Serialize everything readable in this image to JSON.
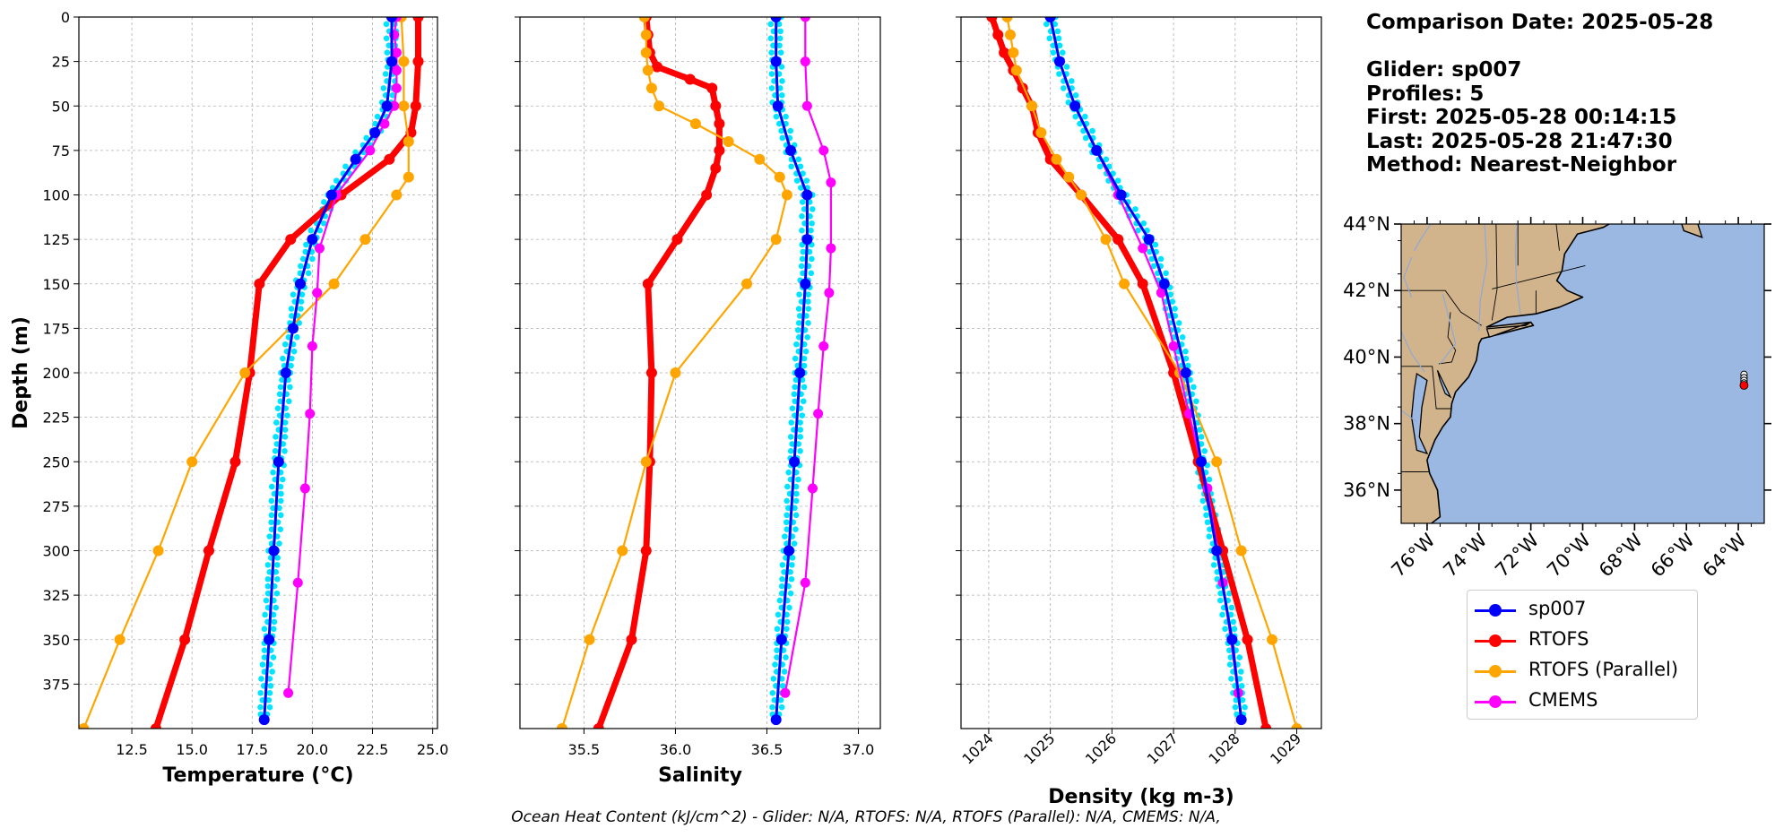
{
  "info": {
    "comparison_date": "Comparison Date: 2025-05-28",
    "glider": "Glider: sp007",
    "profiles": "Profiles: 5",
    "first": "First: 2025-05-28 00:14:15",
    "last": "Last: 2025-05-28 21:47:30",
    "method": "Method: Nearest-Neighbor"
  },
  "footer": "Ocean Heat Content (kJ/cm^2) - Glider: N/A,  RTOFS: N/A,  RTOFS (Parallel): N/A,  CMEMS: N/A,",
  "colors": {
    "glider": "#0000ff",
    "glider_scatter": "#00e5ff",
    "rtofs": "#ff0000",
    "rtofs_parallel": "#ffa500",
    "cmems": "#ff00ff",
    "land": "#d2b48c",
    "ocean": "#9bb8e3",
    "grid": "#b0b0b0"
  },
  "legend": [
    {
      "name": "sp007",
      "color": "#0000ff"
    },
    {
      "name": "RTOFS",
      "color": "#ff0000"
    },
    {
      "name": "RTOFS (Parallel)",
      "color": "#ffa500"
    },
    {
      "name": "CMEMS",
      "color": "#ff00ff"
    }
  ],
  "chart_data": [
    {
      "type": "line",
      "xlabel": "Temperature (°C)",
      "ylabel": "Depth (m)",
      "xlim": [
        10.3,
        25.2
      ],
      "ylim": [
        400,
        0
      ],
      "xticks": [
        "12.5",
        "15.0",
        "17.5",
        "20.0",
        "22.5",
        "25.0"
      ],
      "xtick_values": [
        12.5,
        15.0,
        17.5,
        20.0,
        22.5,
        25.0
      ],
      "yticks": [
        "0",
        "25",
        "50",
        "75",
        "100",
        "125",
        "150",
        "175",
        "200",
        "225",
        "250",
        "275",
        "300",
        "325",
        "350",
        "375"
      ],
      "ytick_values": [
        0,
        25,
        50,
        75,
        100,
        125,
        150,
        175,
        200,
        225,
        250,
        275,
        300,
        325,
        350,
        375
      ],
      "grid": true,
      "series": [
        {
          "name": "RTOFS",
          "depth": [
            0,
            25,
            50,
            65,
            80,
            100,
            125,
            150,
            200,
            250,
            300,
            350,
            400
          ],
          "values": [
            24.4,
            24.4,
            24.3,
            24.1,
            23.2,
            21.2,
            19.1,
            17.8,
            17.4,
            16.8,
            15.7,
            14.7,
            13.5
          ]
        },
        {
          "name": "RTOFS (Parallel)",
          "depth": [
            0,
            25,
            50,
            70,
            90,
            100,
            125,
            150,
            200,
            250,
            300,
            350,
            400
          ],
          "values": [
            23.7,
            23.8,
            23.8,
            24.0,
            24.0,
            23.5,
            22.2,
            20.9,
            17.2,
            15.0,
            13.6,
            12.0,
            10.5
          ]
        },
        {
          "name": "CMEMS",
          "depth": [
            0,
            10,
            20,
            30,
            40,
            50,
            60,
            75,
            100,
            130,
            155,
            185,
            223,
            265,
            318,
            380
          ],
          "values": [
            23.5,
            23.4,
            23.5,
            23.5,
            23.5,
            23.4,
            23.0,
            22.4,
            21.0,
            20.3,
            20.2,
            20.0,
            19.9,
            19.7,
            19.4,
            19.0
          ]
        },
        {
          "name": "sp007",
          "depth": [
            0,
            25,
            50,
            65,
            80,
            100,
            125,
            150,
            175,
            200,
            250,
            300,
            350,
            395
          ],
          "values": [
            23.3,
            23.3,
            23.1,
            22.6,
            21.8,
            20.8,
            20.0,
            19.5,
            19.2,
            18.9,
            18.6,
            18.4,
            18.2,
            18.0
          ]
        }
      ]
    },
    {
      "type": "line",
      "xlabel": "Salinity",
      "ylabel": "Depth (m)",
      "xlim": [
        35.15,
        37.12
      ],
      "ylim": [
        400,
        0
      ],
      "xticks": [
        "35.5",
        "36.0",
        "36.5",
        "37.0"
      ],
      "xtick_values": [
        35.5,
        36.0,
        36.5,
        37.0
      ],
      "grid": true,
      "series": [
        {
          "name": "RTOFS",
          "depth": [
            0,
            10,
            20,
            28,
            35,
            40,
            50,
            60,
            75,
            85,
            100,
            125,
            150,
            200,
            250,
            300,
            350,
            400
          ],
          "values": [
            35.84,
            35.85,
            35.86,
            35.9,
            36.08,
            36.2,
            36.22,
            36.24,
            36.24,
            36.22,
            36.17,
            36.01,
            35.85,
            35.87,
            35.86,
            35.84,
            35.76,
            35.58
          ]
        },
        {
          "name": "RTOFS (Parallel)",
          "depth": [
            0,
            10,
            20,
            30,
            40,
            50,
            60,
            70,
            80,
            90,
            100,
            125,
            150,
            200,
            250,
            300,
            350,
            400
          ],
          "values": [
            35.83,
            35.84,
            35.84,
            35.85,
            35.87,
            35.91,
            36.11,
            36.29,
            36.46,
            36.57,
            36.61,
            36.55,
            36.39,
            36.0,
            35.84,
            35.71,
            35.53,
            35.38
          ]
        },
        {
          "name": "CMEMS",
          "depth": [
            0,
            25,
            50,
            75,
            93,
            130,
            155,
            185,
            223,
            265,
            318,
            380
          ],
          "values": [
            36.71,
            36.71,
            36.72,
            36.81,
            36.85,
            36.85,
            36.84,
            36.81,
            36.78,
            36.75,
            36.71,
            36.6
          ]
        },
        {
          "name": "sp007",
          "depth": [
            0,
            25,
            50,
            75,
            100,
            125,
            150,
            200,
            250,
            300,
            350,
            395
          ],
          "values": [
            36.55,
            36.55,
            36.56,
            36.63,
            36.72,
            36.72,
            36.71,
            36.68,
            36.65,
            36.62,
            36.58,
            36.55
          ]
        }
      ]
    },
    {
      "type": "line",
      "xlabel": "Density (kg m-3)",
      "ylabel": "Depth (m)",
      "xlim": [
        1023.55,
        1029.4
      ],
      "ylim": [
        400,
        0
      ],
      "xticks": [
        "1024",
        "1025",
        "1026",
        "1027",
        "1028",
        "1029"
      ],
      "xtick_values": [
        1024,
        1025,
        1026,
        1027,
        1028,
        1029
      ],
      "grid": true,
      "series": [
        {
          "name": "RTOFS",
          "depth": [
            0,
            10,
            20,
            30,
            40,
            50,
            65,
            80,
            100,
            125,
            150,
            200,
            250,
            300,
            350,
            400
          ],
          "values": [
            1024.05,
            1024.15,
            1024.25,
            1024.4,
            1024.55,
            1024.7,
            1024.8,
            1025.0,
            1025.5,
            1026.1,
            1026.5,
            1027.0,
            1027.4,
            1027.8,
            1028.2,
            1028.5
          ]
        },
        {
          "name": "RTOFS (Parallel)",
          "depth": [
            0,
            10,
            20,
            30,
            50,
            65,
            80,
            90,
            100,
            125,
            150,
            200,
            250,
            300,
            350,
            400
          ],
          "values": [
            1024.3,
            1024.35,
            1024.4,
            1024.45,
            1024.7,
            1024.85,
            1025.1,
            1025.3,
            1025.5,
            1025.9,
            1026.2,
            1027.1,
            1027.7,
            1028.1,
            1028.6,
            1029.0
          ]
        },
        {
          "name": "CMEMS",
          "depth": [
            0,
            25,
            50,
            75,
            100,
            130,
            155,
            185,
            223,
            265,
            318,
            380
          ],
          "values": [
            1025.0,
            1025.15,
            1025.4,
            1025.75,
            1026.1,
            1026.5,
            1026.8,
            1027.0,
            1027.25,
            1027.55,
            1027.8,
            1028.05
          ]
        },
        {
          "name": "sp007",
          "depth": [
            0,
            25,
            50,
            75,
            100,
            125,
            150,
            200,
            250,
            300,
            350,
            395
          ],
          "values": [
            1025.0,
            1025.15,
            1025.4,
            1025.75,
            1026.15,
            1026.6,
            1026.85,
            1027.2,
            1027.45,
            1027.7,
            1027.95,
            1028.1
          ]
        }
      ]
    }
  ],
  "map": {
    "lat_ticks": [
      "44°N",
      "42°N",
      "40°N",
      "38°N",
      "36°N"
    ],
    "lon_ticks": [
      "76°W",
      "74°W",
      "72°W",
      "70°W",
      "68°W",
      "66°W",
      "64°W"
    ],
    "lon_range": [
      -77.0,
      -63.0
    ],
    "lat_range": [
      35.0,
      44.0
    ],
    "glider_position": {
      "lon": -63.8,
      "lat": 39.2
    }
  }
}
